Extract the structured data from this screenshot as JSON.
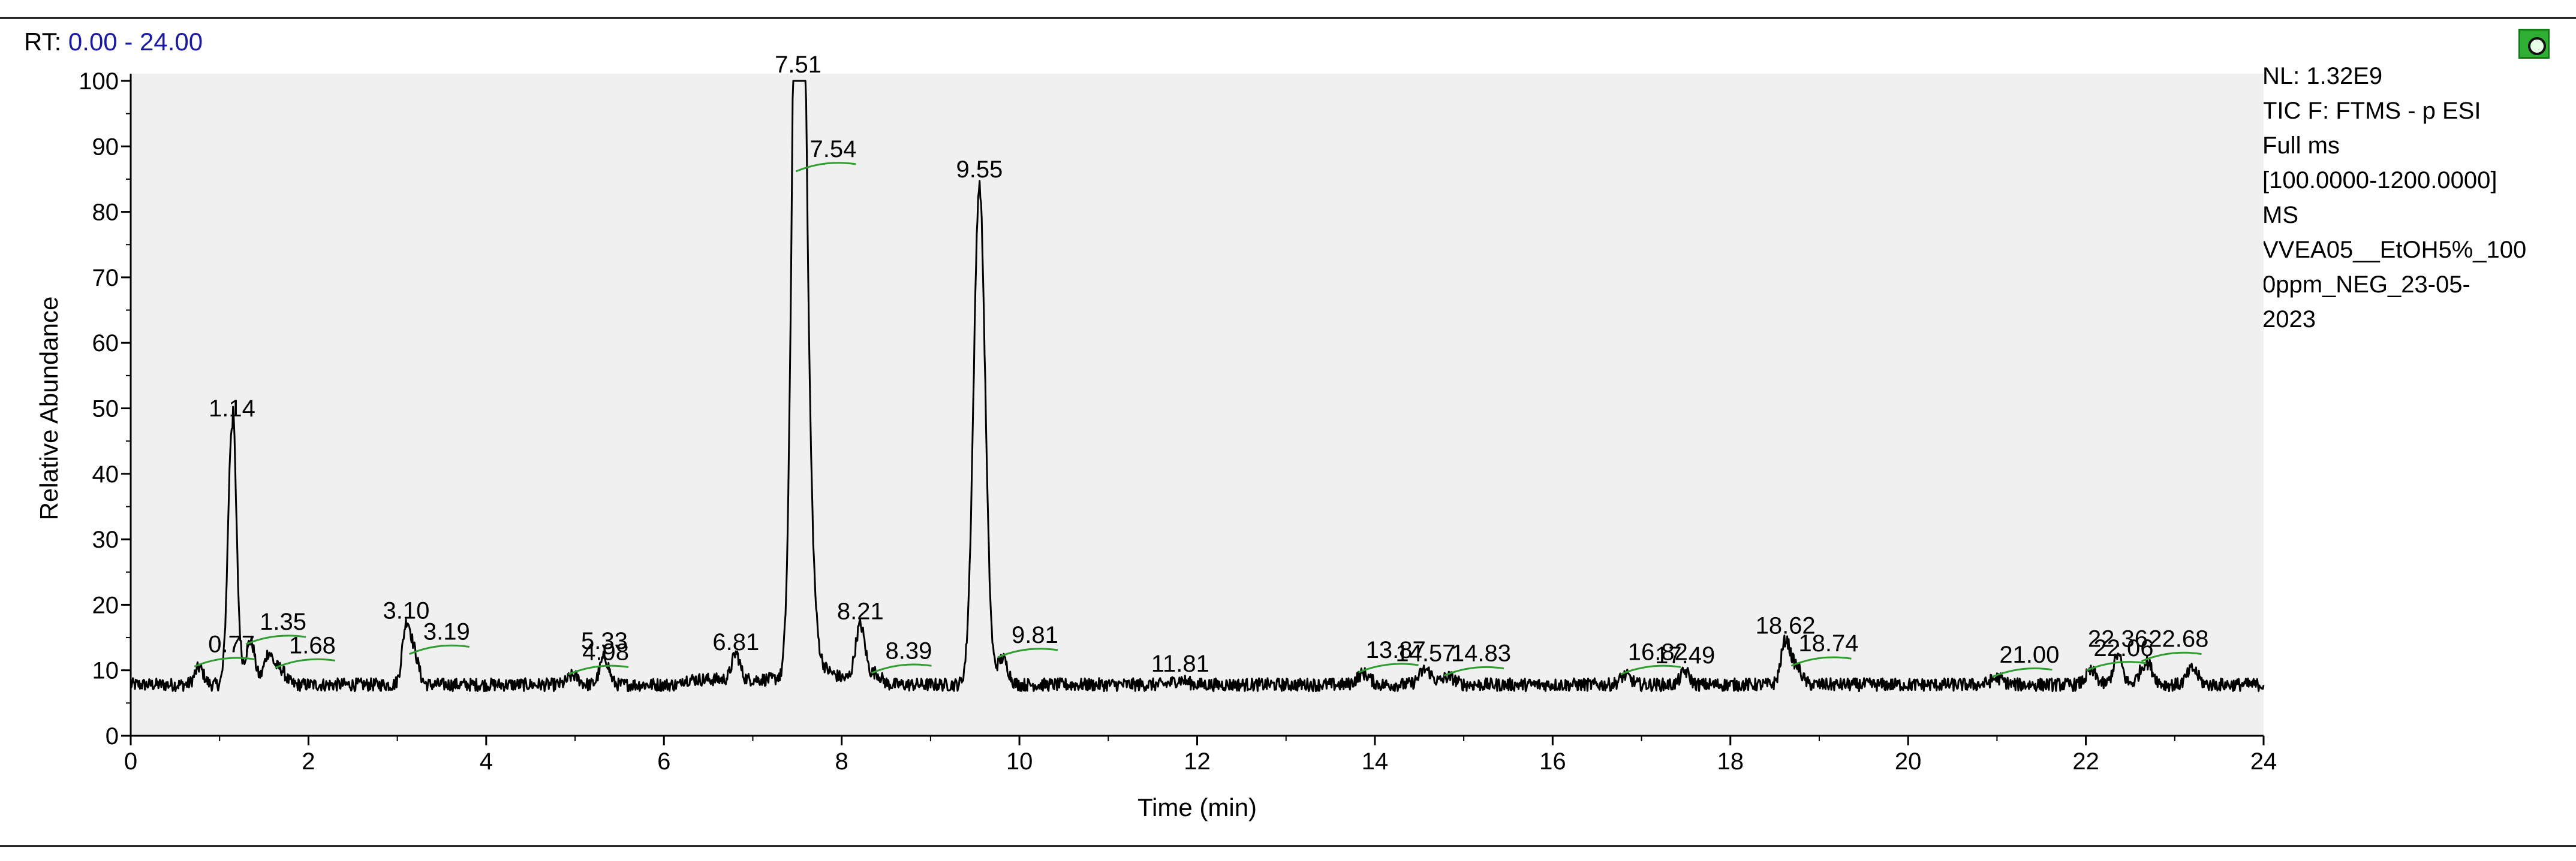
{
  "header": {
    "rt_prefix": "RT:",
    "rt_range": "0.00 - 24.00",
    "pin_icon": "pin-icon"
  },
  "info": {
    "lines": [
      "NL: 1.32E9",
      "TIC F: FTMS - p ESI",
      "Full ms",
      "[100.0000-1200.0000]",
      "MS",
      "VVEA05__EtOH5%_100",
      "0ppm_NEG_23-05-",
      "2023"
    ]
  },
  "colors": {
    "plot_bg": "#f0f0f0",
    "trace": "#000000",
    "label_marker": "#2f9e2f",
    "rt_value": "#1a1aa0"
  },
  "chart_data": {
    "type": "line",
    "xlabel": "Time (min)",
    "ylabel": "Relative Abundance",
    "xlim": [
      0,
      24
    ],
    "ylim": [
      0,
      100
    ],
    "xticks": [
      0,
      2,
      4,
      6,
      8,
      10,
      12,
      14,
      16,
      18,
      20,
      22,
      24
    ],
    "yticks": [
      0,
      10,
      20,
      30,
      40,
      50,
      60,
      70,
      80,
      90,
      100
    ],
    "baseline": 7.8,
    "peaks": [
      {
        "rt": 0.77,
        "height": 10.4,
        "width": 0.05
      },
      {
        "rt": 1.14,
        "height": 47.5,
        "width": 0.045
      },
      {
        "rt": 1.35,
        "height": 13.8,
        "width": 0.05
      },
      {
        "rt": 1.55,
        "height": 12.5,
        "width": 0.05
      },
      {
        "rt": 1.68,
        "height": 10.2,
        "width": 0.06
      },
      {
        "rt": 3.1,
        "height": 16.6,
        "width": 0.045
      },
      {
        "rt": 3.19,
        "height": 12.3,
        "width": 0.05
      },
      {
        "rt": 4.98,
        "height": 9.2,
        "width": 0.06
      },
      {
        "rt": 5.33,
        "height": 12.0,
        "width": 0.05
      },
      {
        "rt": 6.81,
        "height": 11.8,
        "width": 0.045
      },
      {
        "rt": 7.51,
        "height": 100.0,
        "width": 0.055
      },
      {
        "rt": 7.54,
        "height": 86.0,
        "width": 0.08
      },
      {
        "rt": 8.21,
        "height": 16.5,
        "width": 0.055
      },
      {
        "rt": 8.39,
        "height": 9.4,
        "width": 0.06
      },
      {
        "rt": 9.55,
        "height": 84.0,
        "width": 0.065
      },
      {
        "rt": 9.81,
        "height": 11.8,
        "width": 0.06
      },
      {
        "rt": 11.81,
        "height": 8.5,
        "width": 0.08
      },
      {
        "rt": 13.87,
        "height": 9.5,
        "width": 0.07
      },
      {
        "rt": 14.57,
        "height": 10.1,
        "width": 0.07
      },
      {
        "rt": 14.83,
        "height": 9.0,
        "width": 0.07
      },
      {
        "rt": 16.82,
        "height": 9.2,
        "width": 0.06
      },
      {
        "rt": 17.49,
        "height": 9.8,
        "width": 0.05
      },
      {
        "rt": 18.62,
        "height": 14.3,
        "width": 0.05
      },
      {
        "rt": 18.74,
        "height": 10.5,
        "width": 0.06
      },
      {
        "rt": 21.0,
        "height": 8.8,
        "width": 0.07
      },
      {
        "rt": 22.06,
        "height": 9.8,
        "width": 0.06
      },
      {
        "rt": 22.36,
        "height": 12.3,
        "width": 0.05
      },
      {
        "rt": 22.68,
        "height": 11.2,
        "width": 0.07
      },
      {
        "rt": 23.2,
        "height": 10.2,
        "width": 0.06
      }
    ],
    "annotations": [
      {
        "label": "0.77",
        "rt": 0.77,
        "y": 10.4,
        "marker": true
      },
      {
        "label": "1.14",
        "rt": 1.14,
        "y": 47.5,
        "marker": false
      },
      {
        "label": "1.35",
        "rt": 1.35,
        "y": 13.8,
        "marker": true
      },
      {
        "label": "1.68",
        "rt": 1.68,
        "y": 10.2,
        "marker": true
      },
      {
        "label": "3.10",
        "rt": 3.1,
        "y": 16.6,
        "marker": false
      },
      {
        "label": "3.19",
        "rt": 3.19,
        "y": 12.3,
        "marker": true
      },
      {
        "label": "4.98",
        "rt": 4.98,
        "y": 9.2,
        "marker": true
      },
      {
        "label": "5.33",
        "rt": 5.33,
        "y": 12.0,
        "marker": false
      },
      {
        "label": "6.81",
        "rt": 6.81,
        "y": 11.8,
        "marker": false
      },
      {
        "label": "7.51",
        "rt": 7.51,
        "y": 100.0,
        "marker": false
      },
      {
        "label": "7.54",
        "rt": 7.54,
        "y": 86.0,
        "marker": true
      },
      {
        "label": "8.21",
        "rt": 8.21,
        "y": 16.5,
        "marker": false
      },
      {
        "label": "8.39",
        "rt": 8.39,
        "y": 9.4,
        "marker": true
      },
      {
        "label": "9.55",
        "rt": 9.55,
        "y": 84.0,
        "marker": false
      },
      {
        "label": "9.81",
        "rt": 9.81,
        "y": 11.8,
        "marker": true
      },
      {
        "label": "11.81",
        "rt": 11.81,
        "y": 8.5,
        "marker": false
      },
      {
        "label": "13.87",
        "rt": 13.87,
        "y": 9.5,
        "marker": true
      },
      {
        "label": "14.57",
        "rt": 14.57,
        "y": 10.1,
        "marker": false
      },
      {
        "label": "14.83",
        "rt": 14.83,
        "y": 9.0,
        "marker": true
      },
      {
        "label": "16.82",
        "rt": 16.82,
        "y": 9.2,
        "marker": true
      },
      {
        "label": "17.49",
        "rt": 17.49,
        "y": 9.8,
        "marker": false
      },
      {
        "label": "18.62",
        "rt": 18.62,
        "y": 14.3,
        "marker": false
      },
      {
        "label": "18.74",
        "rt": 18.74,
        "y": 10.5,
        "marker": true
      },
      {
        "label": "21.00",
        "rt": 21.0,
        "y": 8.8,
        "marker": true
      },
      {
        "label": "22.06",
        "rt": 22.06,
        "y": 9.8,
        "marker": true
      },
      {
        "label": "22.36",
        "rt": 22.36,
        "y": 12.3,
        "marker": false
      },
      {
        "label": "22.68",
        "rt": 22.68,
        "y": 11.2,
        "marker": true
      }
    ],
    "grid": false,
    "legend": "none"
  }
}
